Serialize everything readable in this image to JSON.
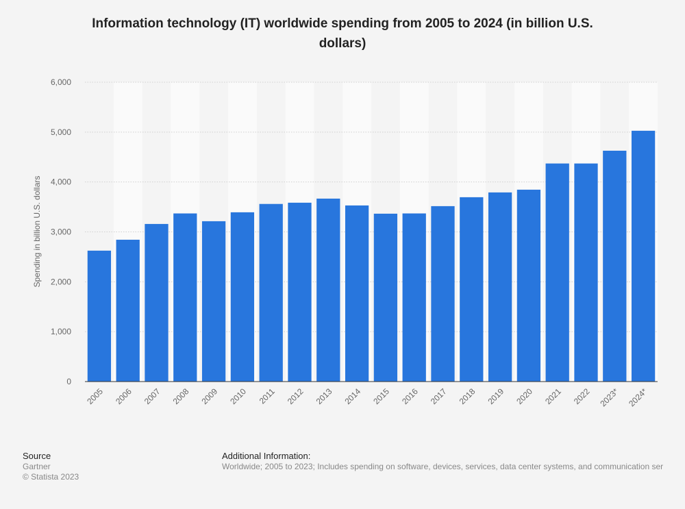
{
  "chart_data": {
    "type": "bar",
    "title": "Information technology (IT) worldwide spending from 2005 to 2024 (in billion U.S. dollars)",
    "y_label": "Spending in billion U.S. dollars",
    "categories": [
      "2005",
      "2006",
      "2007",
      "2008",
      "2009",
      "2010",
      "2011",
      "2012",
      "2013",
      "2014",
      "2015",
      "2016",
      "2017",
      "2018",
      "2019",
      "2020",
      "2021",
      "2022",
      "2023*",
      "2024*"
    ],
    "values": [
      2624,
      2843,
      3159,
      3370,
      3214,
      3393,
      3560,
      3585,
      3667,
      3530,
      3365,
      3370,
      3516,
      3695,
      3791,
      3846,
      4371,
      4371,
      4627,
      5027
    ],
    "color": "#2876dd",
    "ylim": [
      0,
      6000
    ],
    "yticks": [
      0,
      {
        "value": 1000,
        "label": "1,000"
      },
      {
        "value": 2000,
        "label": "2,000"
      },
      {
        "value": 3000,
        "label": "3,000"
      },
      {
        "value": 4000,
        "label": "4,000"
      },
      {
        "value": 5000,
        "label": "5,000"
      },
      {
        "value": 6000,
        "label": "6,000"
      }
    ],
    "grid": true
  },
  "footer": {
    "source_heading": "Source",
    "source": "Gartner",
    "copyright": "© Statista 2023",
    "info_heading": "Additional Information:",
    "info": "Worldwide; 2005 to 2023; Includes spending on software, devices, services, data center systems, and communication ser"
  }
}
